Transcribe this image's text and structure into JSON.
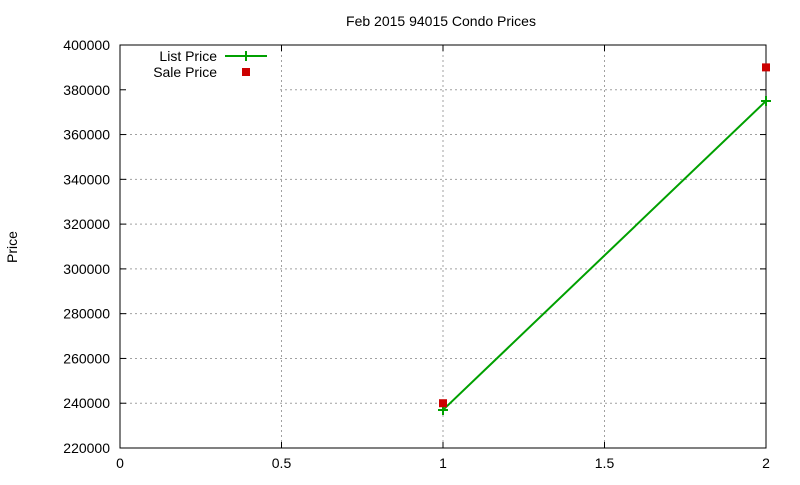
{
  "chart_data": {
    "type": "line",
    "title": "Feb 2015 94015 Condo Prices",
    "xlabel": "",
    "ylabel": "Price",
    "xlim": [
      0,
      2
    ],
    "ylim": [
      220000,
      400000
    ],
    "xticks": [
      "0",
      "0.5",
      "1",
      "1.5",
      "2"
    ],
    "xtick_values": [
      0,
      0.5,
      1,
      1.5,
      2
    ],
    "yticks": [
      "220000",
      "240000",
      "260000",
      "280000",
      "300000",
      "320000",
      "340000",
      "360000",
      "380000",
      "400000"
    ],
    "ytick_values": [
      220000,
      240000,
      260000,
      280000,
      300000,
      320000,
      340000,
      360000,
      380000,
      400000
    ],
    "grid": true,
    "legend_placement": "top-left",
    "series": [
      {
        "name": "List Price",
        "style": "linespoints",
        "marker": "plus",
        "color": "#00a000",
        "x": [
          1,
          2
        ],
        "y": [
          237000,
          375000
        ]
      },
      {
        "name": "Sale Price",
        "style": "points",
        "marker": "square",
        "color": "#cc0000",
        "x": [
          1,
          2
        ],
        "y": [
          240000,
          390000
        ]
      }
    ]
  }
}
